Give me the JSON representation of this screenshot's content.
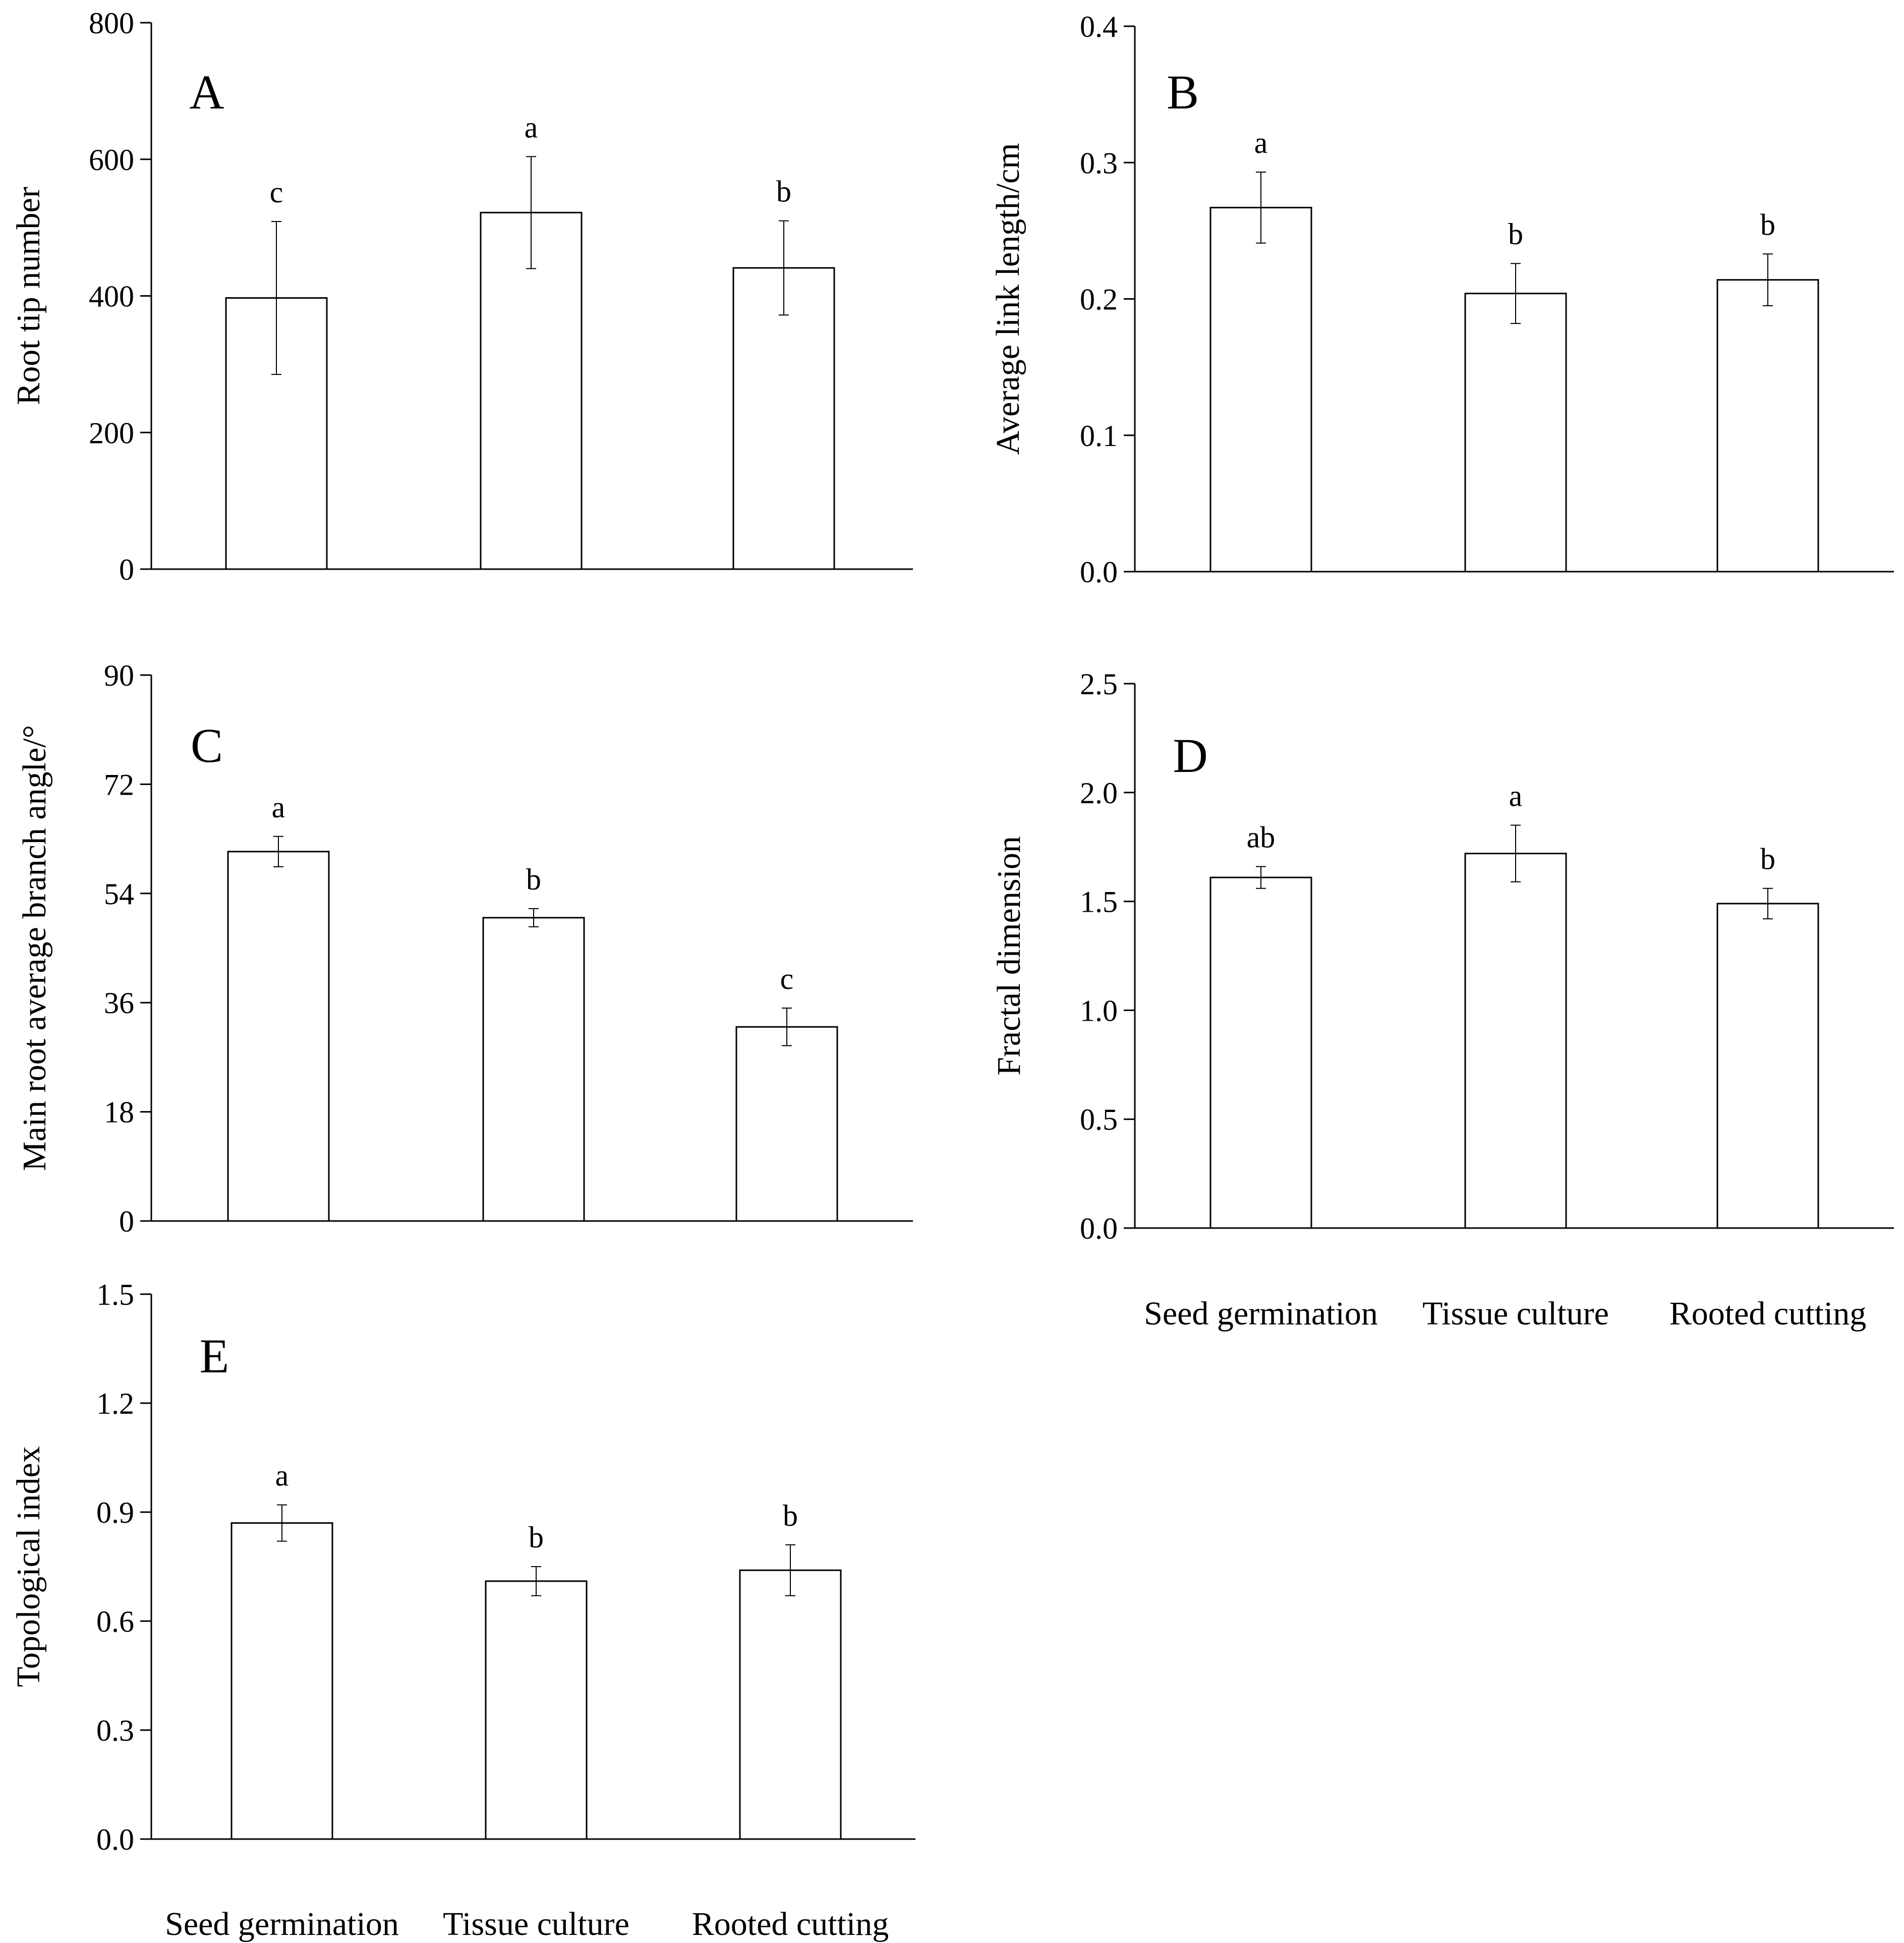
{
  "colors": {
    "bar_fill": "#ffffff",
    "stroke": "#000000",
    "background": "#ffffff"
  },
  "chart_data": [
    {
      "type": "bar",
      "panel": "A",
      "ylabel": "Root tip number",
      "ylim": [
        0,
        800
      ],
      "yticks": [
        0,
        200,
        400,
        600,
        800
      ],
      "ytick_labels": [
        "0",
        "200",
        "400",
        "600",
        "800"
      ],
      "categories": [
        "Seed germination",
        "Tissue culture",
        "Rooted cutting"
      ],
      "show_category_labels": false,
      "values": [
        397,
        522,
        441
      ],
      "errors": [
        112,
        82,
        69
      ],
      "significance": [
        "c",
        "a",
        "b"
      ]
    },
    {
      "type": "bar",
      "panel": "B",
      "ylabel": "Average link length/cm",
      "ylim": [
        0,
        0.4
      ],
      "yticks": [
        0,
        0.1,
        0.2,
        0.3,
        0.4
      ],
      "ytick_labels": [
        "0.0",
        "0.1",
        "0.2",
        "0.3",
        "0.4"
      ],
      "categories": [
        "Seed germination",
        "Tissue culture",
        "Rooted cutting"
      ],
      "show_category_labels": false,
      "values": [
        0.267,
        0.204,
        0.214
      ],
      "errors": [
        0.026,
        0.022,
        0.019
      ],
      "significance": [
        "a",
        "b",
        "b"
      ]
    },
    {
      "type": "bar",
      "panel": "C",
      "ylabel": "Main root average branch angle/°",
      "ylim": [
        0,
        90
      ],
      "yticks": [
        0,
        18,
        36,
        54,
        72,
        90
      ],
      "ytick_labels": [
        "0",
        "18",
        "36",
        "54",
        "72",
        "90"
      ],
      "categories": [
        "Seed germination",
        "Tissue culture",
        "Rooted cutting"
      ],
      "show_category_labels": false,
      "values": [
        60.9,
        50.0,
        32.0
      ],
      "errors": [
        2.5,
        1.5,
        3.1
      ],
      "significance": [
        "a",
        "b",
        "c"
      ]
    },
    {
      "type": "bar",
      "panel": "D",
      "ylabel": "Fractal dimension",
      "ylim": [
        0,
        2.5
      ],
      "yticks": [
        0,
        0.5,
        1.0,
        1.5,
        2.0,
        2.5
      ],
      "ytick_labels": [
        "0.0",
        "0.5",
        "1.0",
        "1.5",
        "2.0",
        "2.5"
      ],
      "categories": [
        "Seed germination",
        "Tissue culture",
        "Rooted cutting"
      ],
      "show_category_labels": true,
      "values": [
        1.61,
        1.72,
        1.49
      ],
      "errors": [
        0.05,
        0.13,
        0.07
      ],
      "significance": [
        "ab",
        "a",
        "b"
      ]
    },
    {
      "type": "bar",
      "panel": "E",
      "ylabel": "Topological index",
      "ylim": [
        0,
        1.5
      ],
      "yticks": [
        0,
        0.3,
        0.6,
        0.9,
        1.2,
        1.5
      ],
      "ytick_labels": [
        "0.0",
        "0.3",
        "0.6",
        "0.9",
        "1.2",
        "1.5"
      ],
      "categories": [
        "Seed germination",
        "Tissue culture",
        "Rooted cutting"
      ],
      "show_category_labels": true,
      "values": [
        0.87,
        0.71,
        0.74
      ],
      "errors": [
        0.05,
        0.04,
        0.07
      ],
      "significance": [
        "a",
        "b",
        "b"
      ]
    }
  ]
}
